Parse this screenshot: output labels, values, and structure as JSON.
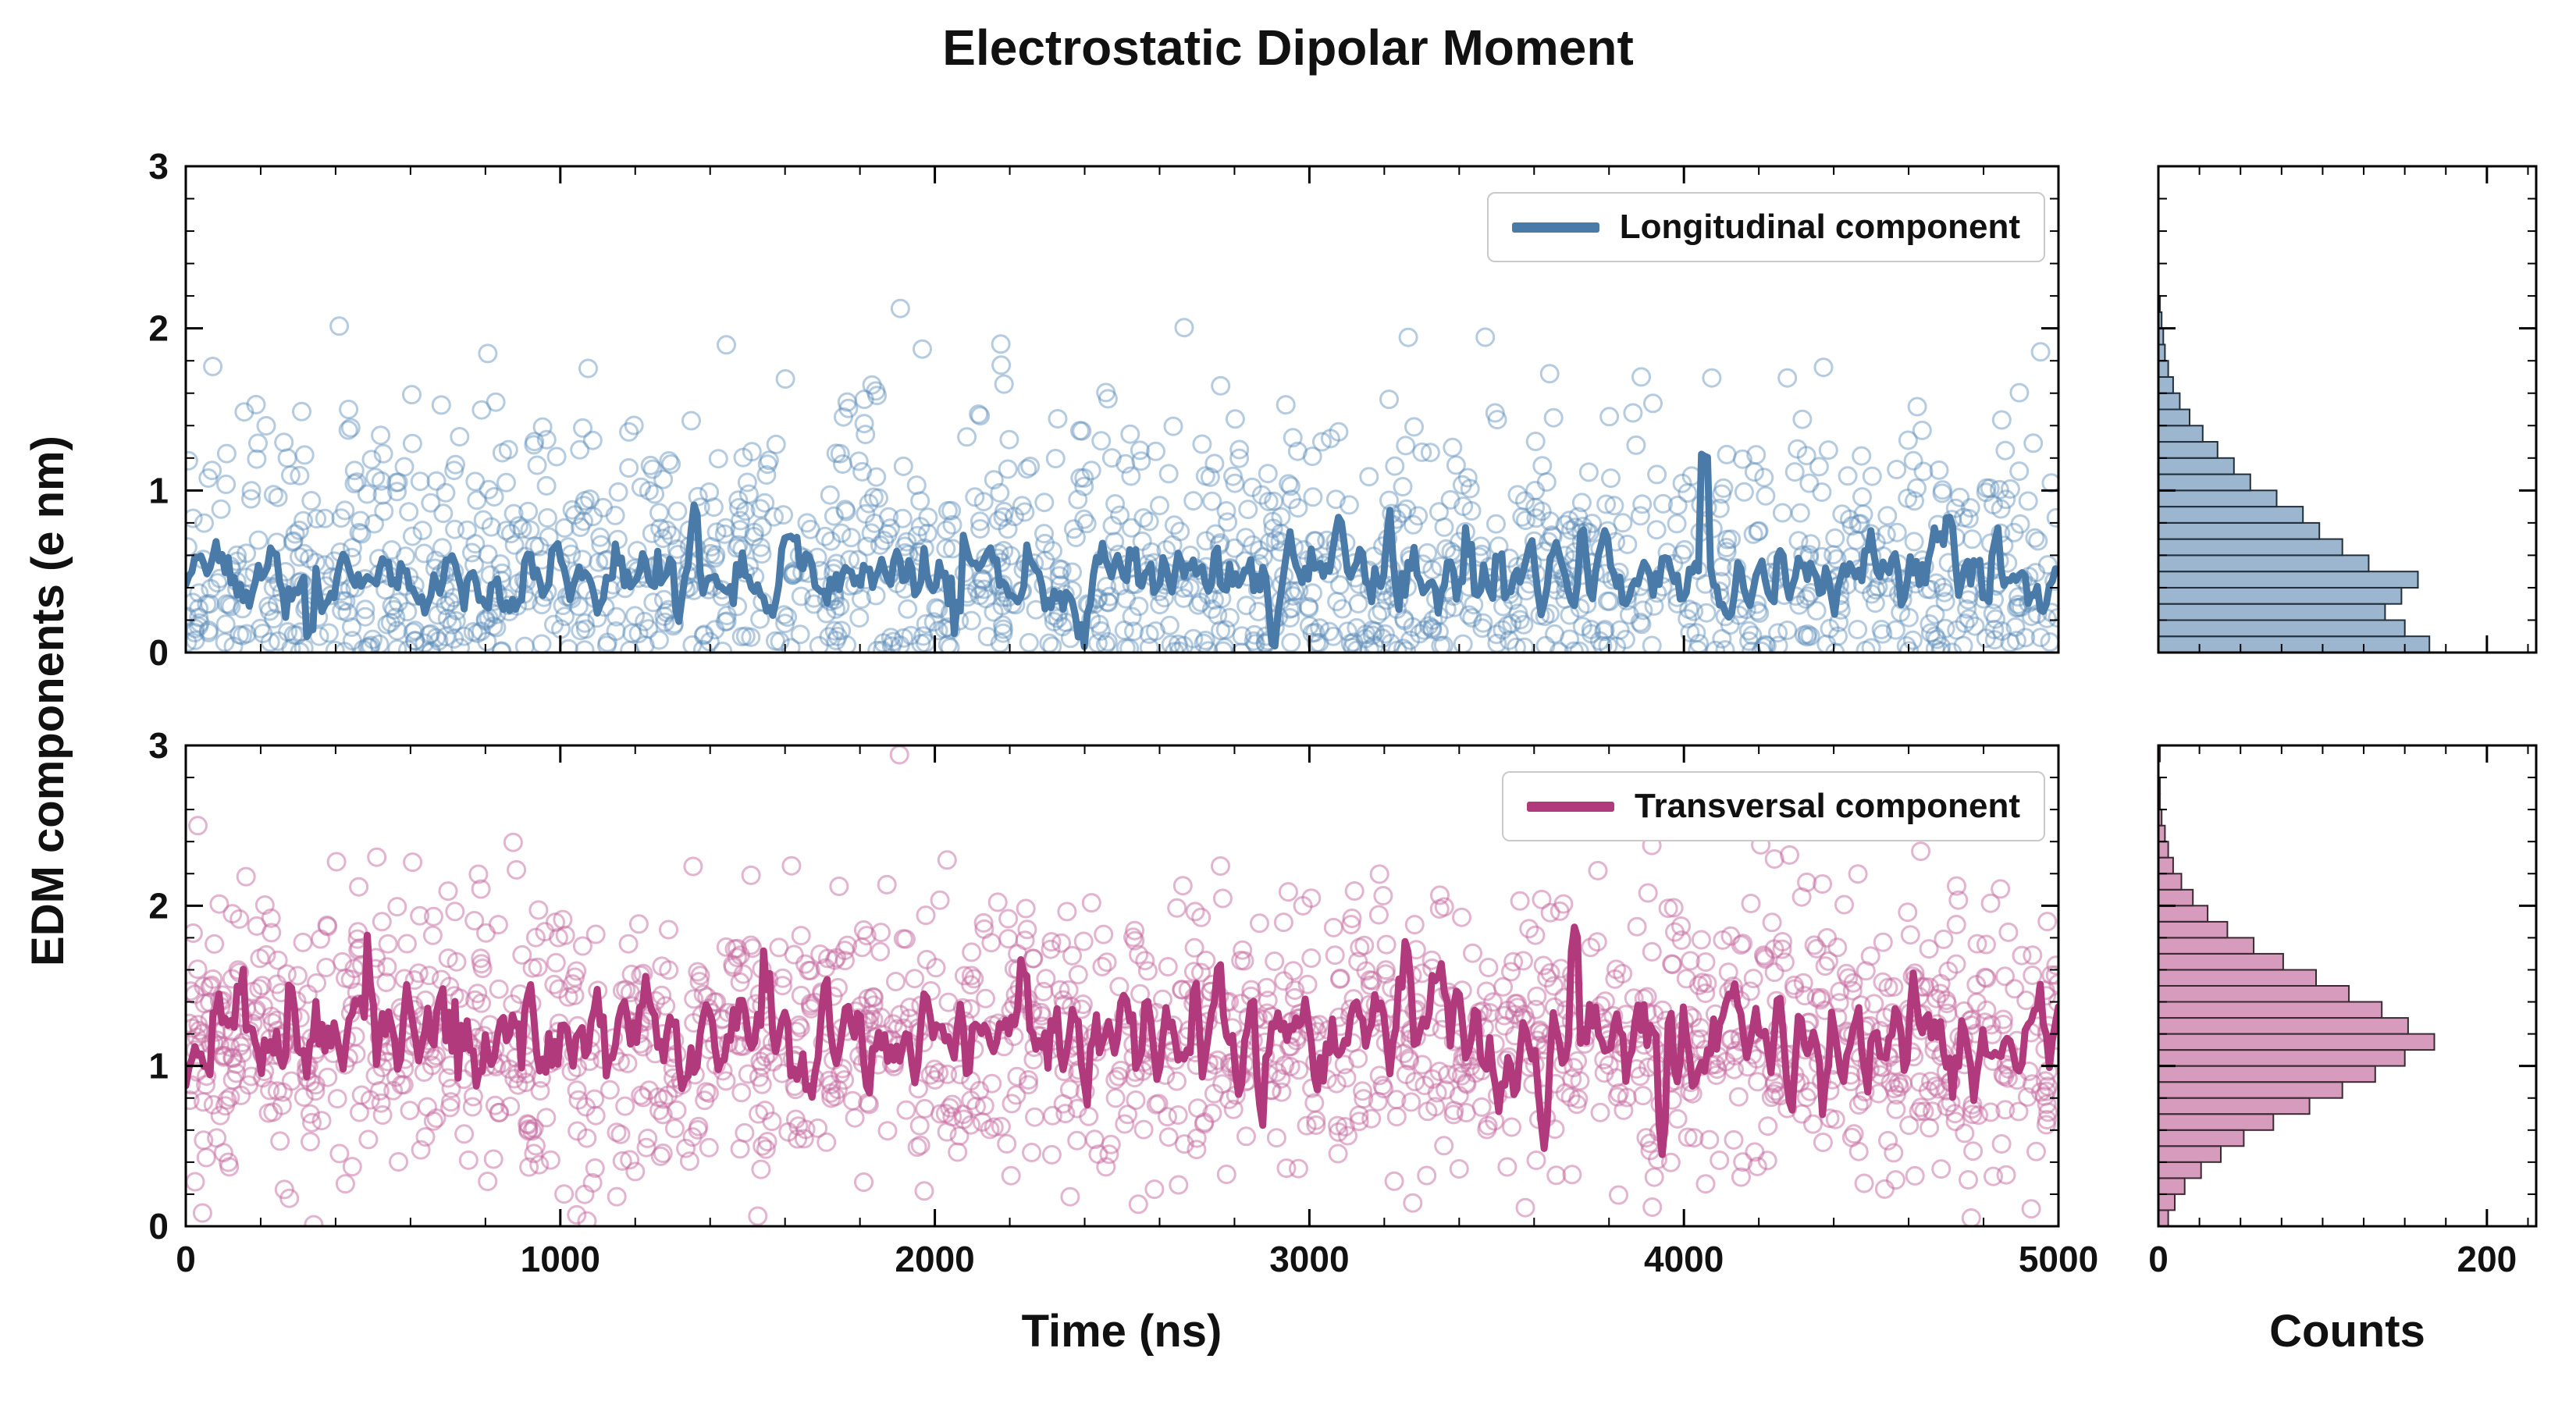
{
  "chart_data": {
    "type": "scatter+line with marginal histograms",
    "title": "Electrostatic Dipolar Moment",
    "ylabel": "EDM components (e nm)",
    "xlabel": "Time (ns)",
    "hist_xlabel": "Counts",
    "x_range": [
      0,
      5000
    ],
    "y_range": [
      0,
      3
    ],
    "counts_range": [
      0,
      230
    ],
    "x_ticks": [
      0,
      1000,
      2000,
      3000,
      4000,
      5000
    ],
    "y_ticks": [
      0,
      1,
      2,
      3
    ],
    "counts_ticks": [
      0,
      200
    ],
    "x_minor_step": 200,
    "y_minor_step": 0.2,
    "counts_minor_step": 25,
    "legend_position": "upper right",
    "grid": false,
    "panels": [
      {
        "name": "longitudinal",
        "legend_label": "Longitudinal component",
        "seed": 11,
        "colors": {
          "line": "#4a7aa8",
          "scatter": "#5b8cb8",
          "hist_fill": "#4a7aa8",
          "hist_edge": "#22303c"
        },
        "scatter_opacity": 0.45,
        "hist_opacity": 0.55,
        "line": {
          "mean": 0.46,
          "sd": 0.12,
          "n": 620,
          "smooth": 3,
          "spike_prob": 0.05,
          "spike_scale": 3.2
        },
        "histogram": {
          "bin_start": 0,
          "bin_width": 0.1,
          "counts": [
            165,
            150,
            138,
            148,
            158,
            128,
            112,
            98,
            88,
            72,
            56,
            46,
            36,
            27,
            19,
            13,
            9,
            6,
            4,
            3,
            2,
            1
          ]
        }
      },
      {
        "name": "transversal",
        "legend_label": "Transversal component",
        "seed": 23,
        "colors": {
          "line": "#b03a7c",
          "scatter": "#c56a9f",
          "hist_fill": "#b03a7c",
          "hist_edge": "#3c2a33"
        },
        "scatter_opacity": 0.5,
        "hist_opacity": 0.5,
        "line": {
          "mean": 1.18,
          "sd": 0.17,
          "n": 620,
          "smooth": 3,
          "spike_prob": 0.05,
          "spike_scale": 2.6
        },
        "histogram": {
          "bin_start": 0,
          "bin_width": 0.1,
          "counts": [
            6,
            10,
            16,
            26,
            38,
            52,
            70,
            92,
            112,
            132,
            150,
            168,
            152,
            136,
            116,
            96,
            76,
            58,
            42,
            30,
            21,
            14,
            9,
            6,
            4,
            2,
            1,
            1,
            0,
            1
          ]
        }
      }
    ]
  }
}
